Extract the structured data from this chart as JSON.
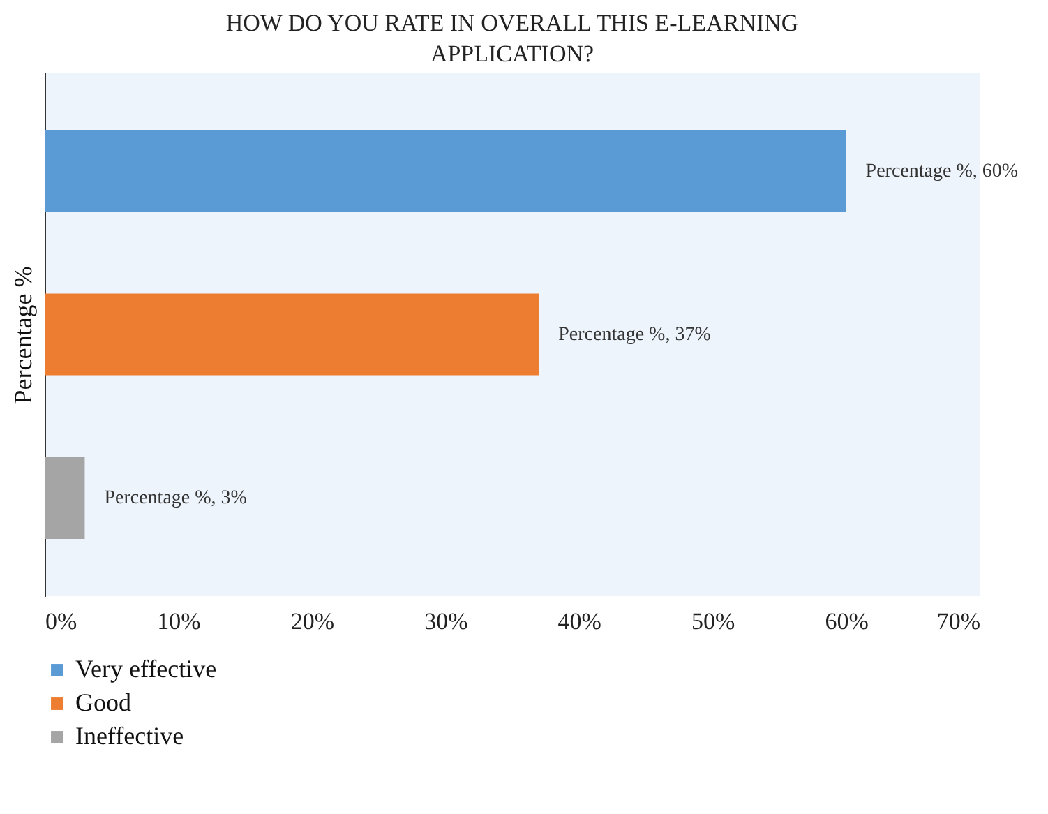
{
  "chart_data": {
    "type": "bar",
    "orientation": "horizontal",
    "title": "HOW DO YOU RATE IN OVERALL THIS E-LEARNING APPLICATION?",
    "ylabel": "Percentage %",
    "categories": [
      null,
      null,
      null
    ],
    "series": [
      {
        "name": "Very effective",
        "color": "#5b9bd5",
        "values": [
          60,
          null,
          null
        ],
        "value_labels": [
          "Percentage %, 60%",
          null,
          null
        ]
      },
      {
        "name": "Good",
        "color": "#ed7d31",
        "values": [
          null,
          37,
          null
        ],
        "value_labels": [
          null,
          "Percentage %, 37%",
          null
        ]
      },
      {
        "name": "Ineffective",
        "color": "#a5a5a5",
        "values": [
          null,
          null,
          3
        ],
        "value_labels": [
          null,
          null,
          "Percentage %, 3%"
        ]
      }
    ],
    "xlim": [
      0,
      70
    ],
    "xticks": [
      {
        "value": 0,
        "label": "0%"
      },
      {
        "value": 10,
        "label": "10%"
      },
      {
        "value": 20,
        "label": "20%"
      },
      {
        "value": 30,
        "label": "30%"
      },
      {
        "value": 40,
        "label": "40%"
      },
      {
        "value": 50,
        "label": "50%"
      },
      {
        "value": 60,
        "label": "60%"
      },
      {
        "value": 70,
        "label": "70%"
      }
    ],
    "grid": false,
    "legend": "bottom left"
  }
}
